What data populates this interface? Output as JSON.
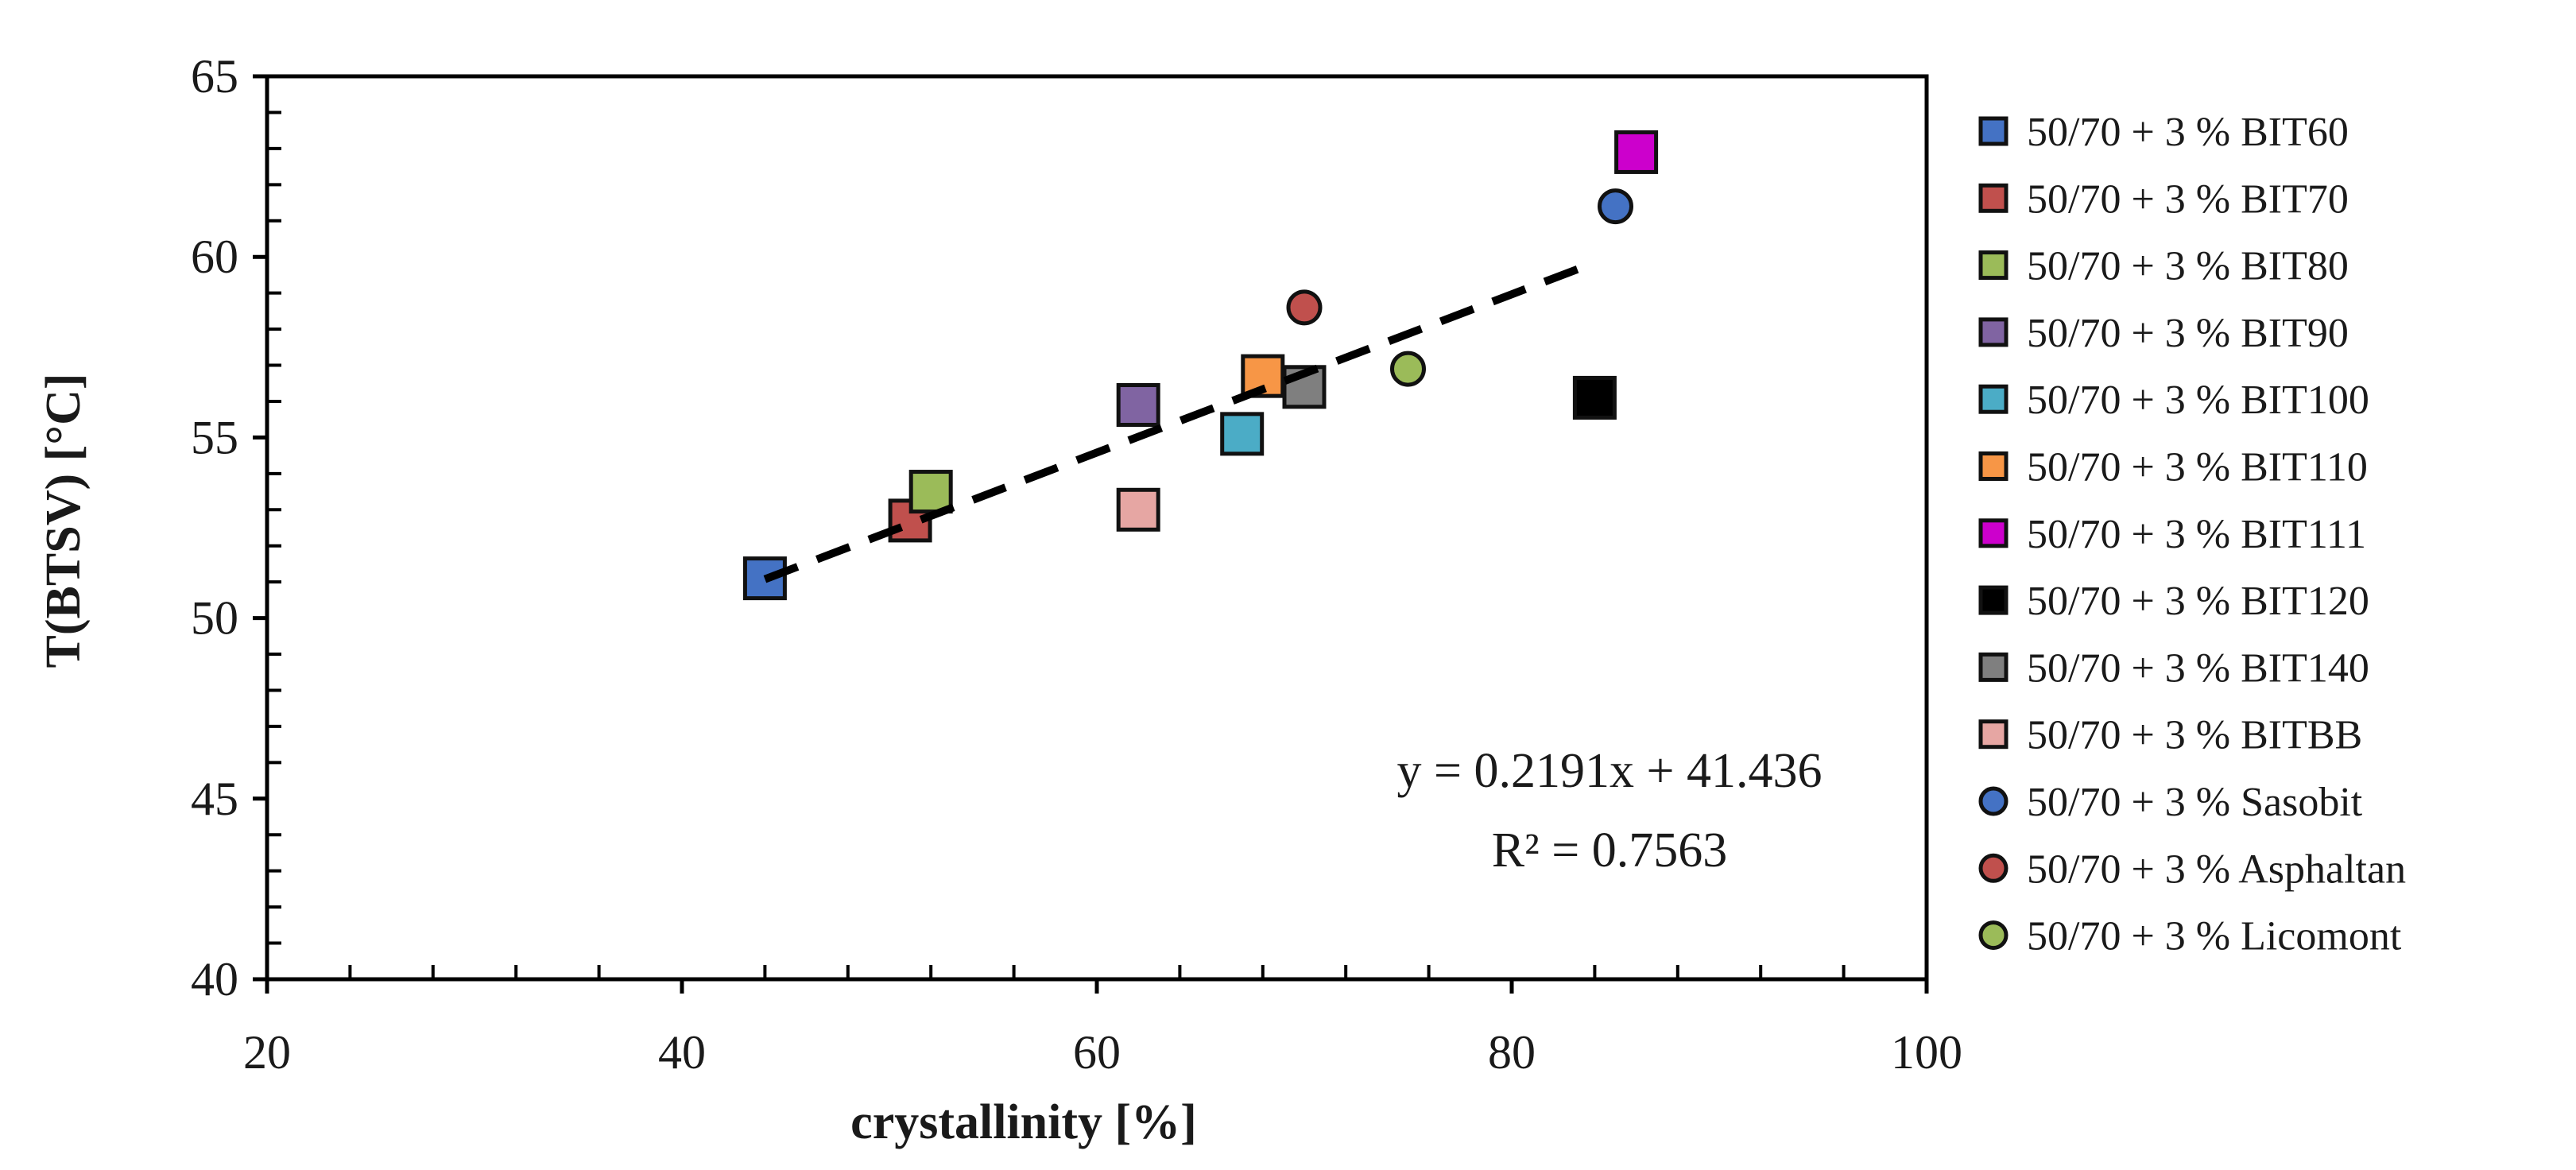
{
  "chart_data": {
    "type": "scatter",
    "title": "",
    "xlabel": "crystallinity [%]",
    "ylabel": "T(BTSV) [°C]",
    "xlim": [
      20,
      100
    ],
    "ylim": [
      40,
      65
    ],
    "x_major_ticks": [
      20,
      40,
      60,
      80,
      100
    ],
    "y_major_ticks": [
      40,
      45,
      50,
      55,
      60,
      65
    ],
    "x_tick_labels": [
      "20",
      "40",
      "60",
      "80",
      "100"
    ],
    "y_tick_labels": [
      "40",
      "45",
      "50",
      "55",
      "60",
      "65"
    ],
    "grid": false,
    "legend_position": "right",
    "series": [
      {
        "name": "50/70 + 3 % BIT60",
        "marker": "square",
        "color": "#4472c4",
        "x": 44,
        "y": 51.1
      },
      {
        "name": "50/70 + 3 % BIT70",
        "marker": "square",
        "color": "#c0504d",
        "x": 51,
        "y": 52.7
      },
      {
        "name": "50/70 + 3 % BIT80",
        "marker": "square",
        "color": "#9bbb59",
        "x": 52,
        "y": 53.5
      },
      {
        "name": "50/70 + 3 % BIT90",
        "marker": "square",
        "color": "#8064a2",
        "x": 62,
        "y": 55.9
      },
      {
        "name": "50/70 + 3 % BIT100",
        "marker": "square",
        "color": "#4bacc6",
        "x": 67,
        "y": 55.1
      },
      {
        "name": "50/70 + 3 % BIT110",
        "marker": "square",
        "color": "#f79646",
        "x": 68,
        "y": 56.7
      },
      {
        "name": "50/70 + 3 % BIT111",
        "marker": "square",
        "color": "#cc00cc",
        "x": 86,
        "y": 62.9
      },
      {
        "name": "50/70 + 3 % BIT120",
        "marker": "square",
        "color": "#000000",
        "x": 84,
        "y": 56.1
      },
      {
        "name": "50/70 + 3 % BIT140",
        "marker": "square",
        "color": "#7f7f7f",
        "x": 70,
        "y": 56.4
      },
      {
        "name": "50/70 + 3 % BITBB",
        "marker": "square",
        "color": "#e6a6a3",
        "x": 62,
        "y": 53.0
      },
      {
        "name": "50/70 + 3 % Sasobit",
        "marker": "circle",
        "color": "#4472c4",
        "x": 85,
        "y": 61.4
      },
      {
        "name": "50/70 + 3 % Asphaltan",
        "marker": "circle",
        "color": "#c0504d",
        "x": 70,
        "y": 58.6
      },
      {
        "name": "50/70 + 3 % Licomont",
        "marker": "circle",
        "color": "#9bbb59",
        "x": 75,
        "y": 56.9
      }
    ],
    "trendline": {
      "type": "linear",
      "slope": 0.2191,
      "intercept": 41.436,
      "x_range": [
        44,
        84
      ],
      "style": "dashed",
      "color": "#000000"
    },
    "annotations": {
      "equation": "y = 0.2191x + 41.436",
      "r_squared": "R² = 0.7563"
    }
  }
}
